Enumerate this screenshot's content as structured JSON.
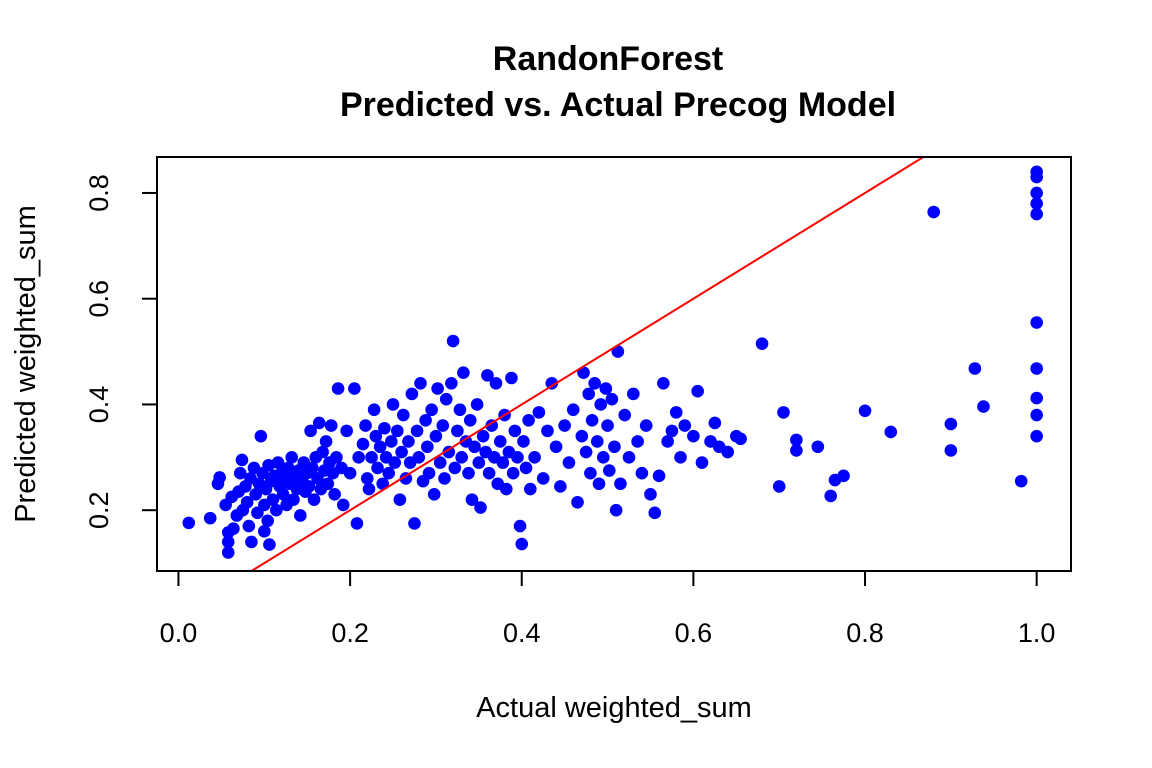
{
  "chart_data": {
    "type": "scatter",
    "title": "RandonForest",
    "subtitle": "Predicted vs. Actual Precog Model",
    "xlabel": "Actual weighted_sum",
    "ylabel": "Predicted weighted_sum",
    "xlim": [
      -0.025,
      1.04
    ],
    "ylim": [
      0.085,
      0.868
    ],
    "xticks": [
      0.0,
      0.2,
      0.4,
      0.6,
      0.8,
      1.0
    ],
    "xtick_labels": [
      "0.0",
      "0.2",
      "0.4",
      "0.6",
      "0.8",
      "1.0"
    ],
    "yticks": [
      0.2,
      0.4,
      0.6,
      0.8
    ],
    "ytick_labels": [
      "0.2",
      "0.4",
      "0.6",
      "0.8"
    ],
    "grid": false,
    "point_color": "#0000ff",
    "reference_line": {
      "slope": 1,
      "intercept": 0,
      "color": "#ff0000"
    },
    "points": [
      [
        0.012,
        0.176
      ],
      [
        0.037,
        0.185
      ],
      [
        0.048,
        0.262
      ],
      [
        0.046,
        0.25
      ],
      [
        0.055,
        0.21
      ],
      [
        0.058,
        0.158
      ],
      [
        0.058,
        0.14
      ],
      [
        0.058,
        0.12
      ],
      [
        0.062,
        0.225
      ],
      [
        0.064,
        0.165
      ],
      [
        0.068,
        0.19
      ],
      [
        0.07,
        0.235
      ],
      [
        0.072,
        0.27
      ],
      [
        0.074,
        0.295
      ],
      [
        0.075,
        0.2
      ],
      [
        0.078,
        0.245
      ],
      [
        0.08,
        0.215
      ],
      [
        0.082,
        0.17
      ],
      [
        0.084,
        0.26
      ],
      [
        0.085,
        0.14
      ],
      [
        0.088,
        0.28
      ],
      [
        0.09,
        0.23
      ],
      [
        0.092,
        0.195
      ],
      [
        0.094,
        0.25
      ],
      [
        0.096,
        0.34
      ],
      [
        0.098,
        0.27
      ],
      [
        0.1,
        0.16
      ],
      [
        0.1,
        0.21
      ],
      [
        0.102,
        0.24
      ],
      [
        0.104,
        0.18
      ],
      [
        0.105,
        0.285
      ],
      [
        0.106,
        0.135
      ],
      [
        0.108,
        0.255
      ],
      [
        0.11,
        0.22
      ],
      [
        0.112,
        0.265
      ],
      [
        0.114,
        0.2
      ],
      [
        0.116,
        0.29
      ],
      [
        0.118,
        0.245
      ],
      [
        0.12,
        0.27
      ],
      [
        0.122,
        0.23
      ],
      [
        0.124,
        0.26
      ],
      [
        0.126,
        0.21
      ],
      [
        0.128,
        0.28
      ],
      [
        0.13,
        0.25
      ],
      [
        0.132,
        0.3
      ],
      [
        0.134,
        0.22
      ],
      [
        0.136,
        0.265
      ],
      [
        0.138,
        0.24
      ],
      [
        0.14,
        0.275
      ],
      [
        0.142,
        0.19
      ],
      [
        0.144,
        0.255
      ],
      [
        0.146,
        0.29
      ],
      [
        0.148,
        0.235
      ],
      [
        0.15,
        0.27
      ],
      [
        0.152,
        0.245
      ],
      [
        0.154,
        0.35
      ],
      [
        0.156,
        0.28
      ],
      [
        0.158,
        0.22
      ],
      [
        0.16,
        0.3
      ],
      [
        0.162,
        0.26
      ],
      [
        0.164,
        0.365
      ],
      [
        0.166,
        0.24
      ],
      [
        0.168,
        0.31
      ],
      [
        0.17,
        0.275
      ],
      [
        0.172,
        0.33
      ],
      [
        0.174,
        0.25
      ],
      [
        0.176,
        0.29
      ],
      [
        0.178,
        0.36
      ],
      [
        0.18,
        0.27
      ],
      [
        0.182,
        0.23
      ],
      [
        0.184,
        0.3
      ],
      [
        0.186,
        0.43
      ],
      [
        0.19,
        0.28
      ],
      [
        0.192,
        0.21
      ],
      [
        0.196,
        0.35
      ],
      [
        0.2,
        0.27
      ],
      [
        0.205,
        0.43
      ],
      [
        0.208,
        0.175
      ],
      [
        0.21,
        0.3
      ],
      [
        0.215,
        0.325
      ],
      [
        0.218,
        0.36
      ],
      [
        0.22,
        0.26
      ],
      [
        0.222,
        0.24
      ],
      [
        0.225,
        0.3
      ],
      [
        0.228,
        0.39
      ],
      [
        0.23,
        0.34
      ],
      [
        0.232,
        0.28
      ],
      [
        0.235,
        0.32
      ],
      [
        0.238,
        0.25
      ],
      [
        0.24,
        0.355
      ],
      [
        0.242,
        0.3
      ],
      [
        0.245,
        0.27
      ],
      [
        0.248,
        0.33
      ],
      [
        0.25,
        0.4
      ],
      [
        0.252,
        0.29
      ],
      [
        0.255,
        0.35
      ],
      [
        0.258,
        0.22
      ],
      [
        0.26,
        0.31
      ],
      [
        0.262,
        0.38
      ],
      [
        0.265,
        0.26
      ],
      [
        0.268,
        0.33
      ],
      [
        0.27,
        0.29
      ],
      [
        0.272,
        0.42
      ],
      [
        0.275,
        0.175
      ],
      [
        0.278,
        0.35
      ],
      [
        0.28,
        0.3
      ],
      [
        0.282,
        0.44
      ],
      [
        0.285,
        0.255
      ],
      [
        0.288,
        0.37
      ],
      [
        0.29,
        0.32
      ],
      [
        0.292,
        0.27
      ],
      [
        0.295,
        0.39
      ],
      [
        0.298,
        0.23
      ],
      [
        0.3,
        0.34
      ],
      [
        0.302,
        0.43
      ],
      [
        0.305,
        0.29
      ],
      [
        0.308,
        0.36
      ],
      [
        0.31,
        0.26
      ],
      [
        0.312,
        0.41
      ],
      [
        0.315,
        0.31
      ],
      [
        0.318,
        0.44
      ],
      [
        0.32,
        0.52
      ],
      [
        0.322,
        0.28
      ],
      [
        0.325,
        0.35
      ],
      [
        0.328,
        0.39
      ],
      [
        0.33,
        0.3
      ],
      [
        0.332,
        0.46
      ],
      [
        0.335,
        0.33
      ],
      [
        0.338,
        0.27
      ],
      [
        0.34,
        0.37
      ],
      [
        0.342,
        0.22
      ],
      [
        0.345,
        0.32
      ],
      [
        0.348,
        0.4
      ],
      [
        0.35,
        0.29
      ],
      [
        0.352,
        0.205
      ],
      [
        0.355,
        0.34
      ],
      [
        0.358,
        0.31
      ],
      [
        0.36,
        0.455
      ],
      [
        0.362,
        0.27
      ],
      [
        0.365,
        0.36
      ],
      [
        0.368,
        0.3
      ],
      [
        0.37,
        0.44
      ],
      [
        0.372,
        0.25
      ],
      [
        0.375,
        0.33
      ],
      [
        0.378,
        0.29
      ],
      [
        0.38,
        0.38
      ],
      [
        0.382,
        0.24
      ],
      [
        0.385,
        0.31
      ],
      [
        0.388,
        0.45
      ],
      [
        0.39,
        0.27
      ],
      [
        0.392,
        0.35
      ],
      [
        0.395,
        0.3
      ],
      [
        0.398,
        0.17
      ],
      [
        0.4,
        0.136
      ],
      [
        0.402,
        0.33
      ],
      [
        0.405,
        0.28
      ],
      [
        0.408,
        0.37
      ],
      [
        0.41,
        0.24
      ],
      [
        0.415,
        0.3
      ],
      [
        0.42,
        0.385
      ],
      [
        0.425,
        0.26
      ],
      [
        0.43,
        0.35
      ],
      [
        0.435,
        0.44
      ],
      [
        0.44,
        0.32
      ],
      [
        0.445,
        0.245
      ],
      [
        0.45,
        0.36
      ],
      [
        0.455,
        0.29
      ],
      [
        0.46,
        0.39
      ],
      [
        0.465,
        0.215
      ],
      [
        0.47,
        0.34
      ],
      [
        0.472,
        0.46
      ],
      [
        0.475,
        0.31
      ],
      [
        0.478,
        0.42
      ],
      [
        0.48,
        0.27
      ],
      [
        0.482,
        0.37
      ],
      [
        0.485,
        0.44
      ],
      [
        0.488,
        0.33
      ],
      [
        0.49,
        0.25
      ],
      [
        0.492,
        0.4
      ],
      [
        0.495,
        0.3
      ],
      [
        0.498,
        0.43
      ],
      [
        0.5,
        0.36
      ],
      [
        0.502,
        0.275
      ],
      [
        0.505,
        0.41
      ],
      [
        0.508,
        0.32
      ],
      [
        0.51,
        0.2
      ],
      [
        0.512,
        0.5
      ],
      [
        0.515,
        0.25
      ],
      [
        0.52,
        0.38
      ],
      [
        0.525,
        0.3
      ],
      [
        0.53,
        0.42
      ],
      [
        0.535,
        0.33
      ],
      [
        0.54,
        0.27
      ],
      [
        0.545,
        0.36
      ],
      [
        0.55,
        0.23
      ],
      [
        0.555,
        0.195
      ],
      [
        0.56,
        0.265
      ],
      [
        0.565,
        0.44
      ],
      [
        0.57,
        0.33
      ],
      [
        0.575,
        0.35
      ],
      [
        0.58,
        0.385
      ],
      [
        0.585,
        0.3
      ],
      [
        0.59,
        0.36
      ],
      [
        0.6,
        0.34
      ],
      [
        0.605,
        0.425
      ],
      [
        0.61,
        0.29
      ],
      [
        0.62,
        0.33
      ],
      [
        0.625,
        0.365
      ],
      [
        0.63,
        0.32
      ],
      [
        0.64,
        0.31
      ],
      [
        0.65,
        0.34
      ],
      [
        0.655,
        0.335
      ],
      [
        0.68,
        0.515
      ],
      [
        0.7,
        0.245
      ],
      [
        0.705,
        0.385
      ],
      [
        0.72,
        0.333
      ],
      [
        0.72,
        0.313
      ],
      [
        0.745,
        0.32
      ],
      [
        0.76,
        0.227
      ],
      [
        0.765,
        0.257
      ],
      [
        0.775,
        0.265
      ],
      [
        0.8,
        0.388
      ],
      [
        0.83,
        0.348
      ],
      [
        0.88,
        0.764
      ],
      [
        0.9,
        0.363
      ],
      [
        0.9,
        0.313
      ],
      [
        0.928,
        0.468
      ],
      [
        0.938,
        0.396
      ],
      [
        0.982,
        0.255
      ],
      [
        1.0,
        0.84
      ],
      [
        1.0,
        0.83
      ],
      [
        1.0,
        0.8
      ],
      [
        1.0,
        0.78
      ],
      [
        1.0,
        0.76
      ],
      [
        1.0,
        0.555
      ],
      [
        1.0,
        0.468
      ],
      [
        1.0,
        0.412
      ],
      [
        1.0,
        0.38
      ],
      [
        1.0,
        0.34
      ]
    ]
  }
}
